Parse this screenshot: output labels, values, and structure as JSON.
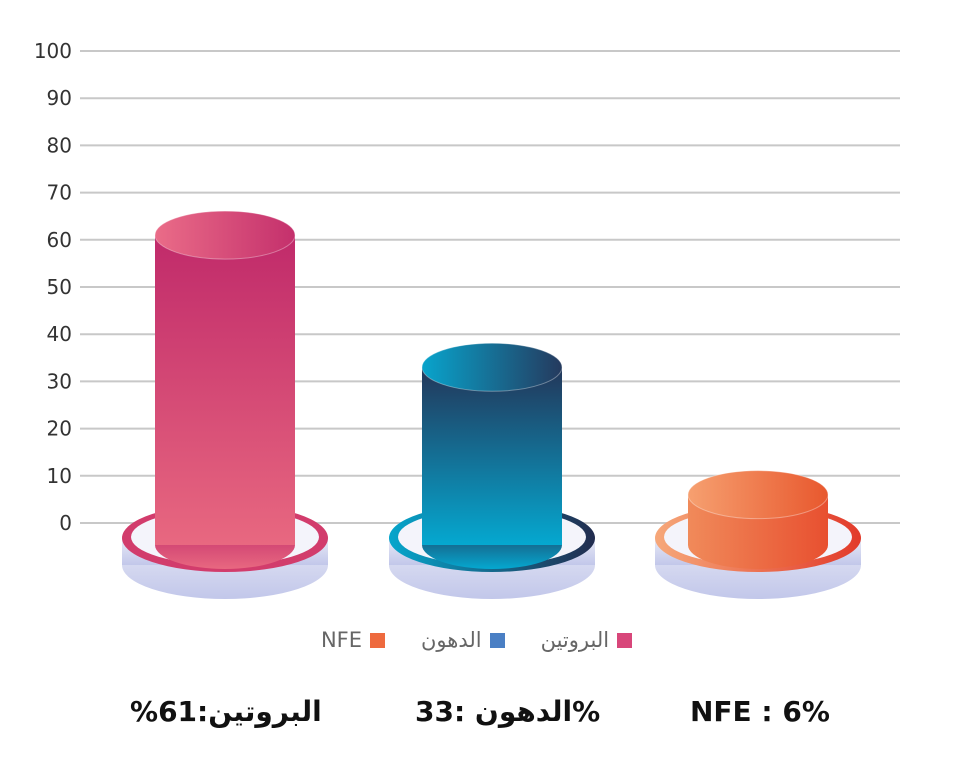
{
  "chart_data": {
    "type": "bar",
    "categories": [
      "البروتين",
      "الدهون",
      "NFE"
    ],
    "values": [
      61,
      33,
      6
    ],
    "ylim": [
      0,
      100
    ],
    "yticks": [
      0,
      10,
      20,
      30,
      40,
      50,
      60,
      70,
      80,
      90,
      100
    ],
    "grid": true,
    "legend_placement": "bottom",
    "colors": [
      "#d8467a",
      "#4a7fc4",
      "#ee6a3e"
    ]
  },
  "legend": [
    {
      "label": "البروتين",
      "color": "#d8467a"
    },
    {
      "label": "الدهون",
      "color": "#4a7fc4"
    },
    {
      "label": "NFE",
      "color": "#ee6a3e"
    }
  ],
  "summary": {
    "protein": "البروتين:61%",
    "fat": "الدهون :33%",
    "nfe": "NFE : 6%"
  }
}
